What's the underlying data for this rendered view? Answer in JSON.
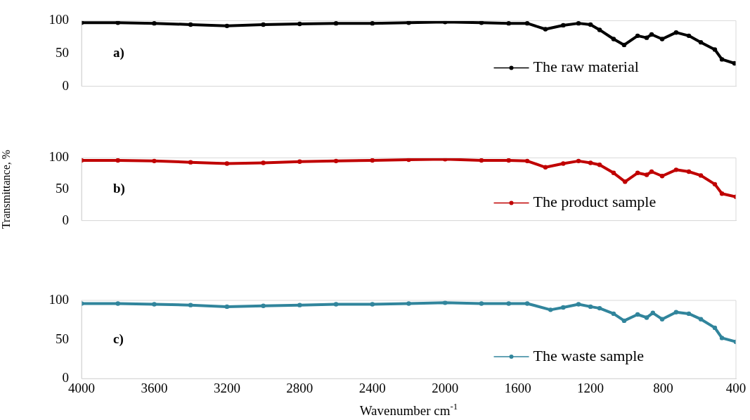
{
  "chart_data": [
    {
      "type": "line",
      "annotations": [
        "a)"
      ],
      "x": [
        4000,
        3800,
        3600,
        3400,
        3200,
        3000,
        2800,
        2600,
        2400,
        2200,
        2000,
        1800,
        1650,
        1548,
        1448,
        1350,
        1266,
        1200,
        1150,
        1073,
        1015,
        941,
        891,
        864,
        806,
        729,
        659,
        593,
        516,
        477,
        408
      ],
      "series": [
        {
          "name": "The raw material",
          "color": "#000000",
          "values": [
            97,
            97,
            96,
            94,
            92,
            94,
            95,
            96,
            96,
            97,
            98,
            97,
            96,
            96,
            87,
            93,
            96,
            94,
            86,
            72,
            63,
            77,
            74,
            79,
            72,
            82,
            77,
            67,
            56,
            41,
            35
          ]
        }
      ],
      "xlim": [
        4000,
        400
      ],
      "xticks": [
        4000,
        3600,
        3200,
        2800,
        2400,
        2000,
        1600,
        1200,
        800,
        400
      ],
      "ylim": [
        0,
        100
      ],
      "yticks": [
        0,
        50,
        100
      ],
      "tick_labels": "y",
      "grid": false,
      "legend": "bottom right",
      "marker": "circle",
      "line_style": "solid"
    },
    {
      "type": "line",
      "ylabel": "Transmittance, %",
      "annotations": [
        "b)"
      ],
      "x": [
        4000,
        3800,
        3600,
        3400,
        3200,
        3000,
        2800,
        2600,
        2400,
        2200,
        2000,
        1800,
        1650,
        1548,
        1448,
        1350,
        1266,
        1200,
        1150,
        1073,
        1010,
        941,
        891,
        864,
        806,
        729,
        659,
        593,
        516,
        477,
        400
      ],
      "series": [
        {
          "name": "The product sample",
          "color": "#c00000",
          "values": [
            96,
            96,
            95,
            93,
            91,
            92,
            94,
            95,
            96,
            97,
            98,
            96,
            96,
            95,
            85,
            91,
            95,
            92,
            89,
            76,
            62,
            76,
            73,
            78,
            71,
            81,
            78,
            72,
            58,
            43,
            38
          ]
        }
      ],
      "xlim": [
        4000,
        400
      ],
      "xticks": [
        4000,
        3600,
        3200,
        2800,
        2400,
        2000,
        1600,
        1200,
        800,
        400
      ],
      "ylim": [
        0,
        100
      ],
      "yticks": [
        0,
        50,
        100
      ],
      "tick_labels": "y",
      "grid": false,
      "legend": "bottom right",
      "marker": "circle",
      "line_style": "solid"
    },
    {
      "type": "line",
      "xlabel": "Wavenumber cm$^{-1}$",
      "annotations": [
        "c)"
      ],
      "x": [
        4000,
        3800,
        3600,
        3400,
        3200,
        3000,
        2800,
        2600,
        2400,
        2200,
        2000,
        1800,
        1650,
        1548,
        1420,
        1350,
        1266,
        1200,
        1150,
        1073,
        1015,
        941,
        891,
        857,
        806,
        729,
        659,
        593,
        516,
        477,
        400
      ],
      "series": [
        {
          "name": "The waste sample",
          "color": "#31859c",
          "values": [
            96,
            96,
            95,
            94,
            92,
            93,
            94,
            95,
            95,
            96,
            97,
            96,
            96,
            96,
            88,
            91,
            95,
            92,
            90,
            83,
            74,
            82,
            78,
            84,
            76,
            85,
            83,
            76,
            65,
            52,
            47
          ]
        }
      ],
      "xlim": [
        4000,
        400
      ],
      "xticks": [
        4000,
        3600,
        3200,
        2800,
        2400,
        2000,
        1600,
        1200,
        800,
        400
      ],
      "ylim": [
        0,
        100
      ],
      "yticks": [
        0,
        50,
        100
      ],
      "grid": false,
      "legend": "bottom right",
      "marker": "circle",
      "line_style": "solid"
    }
  ]
}
